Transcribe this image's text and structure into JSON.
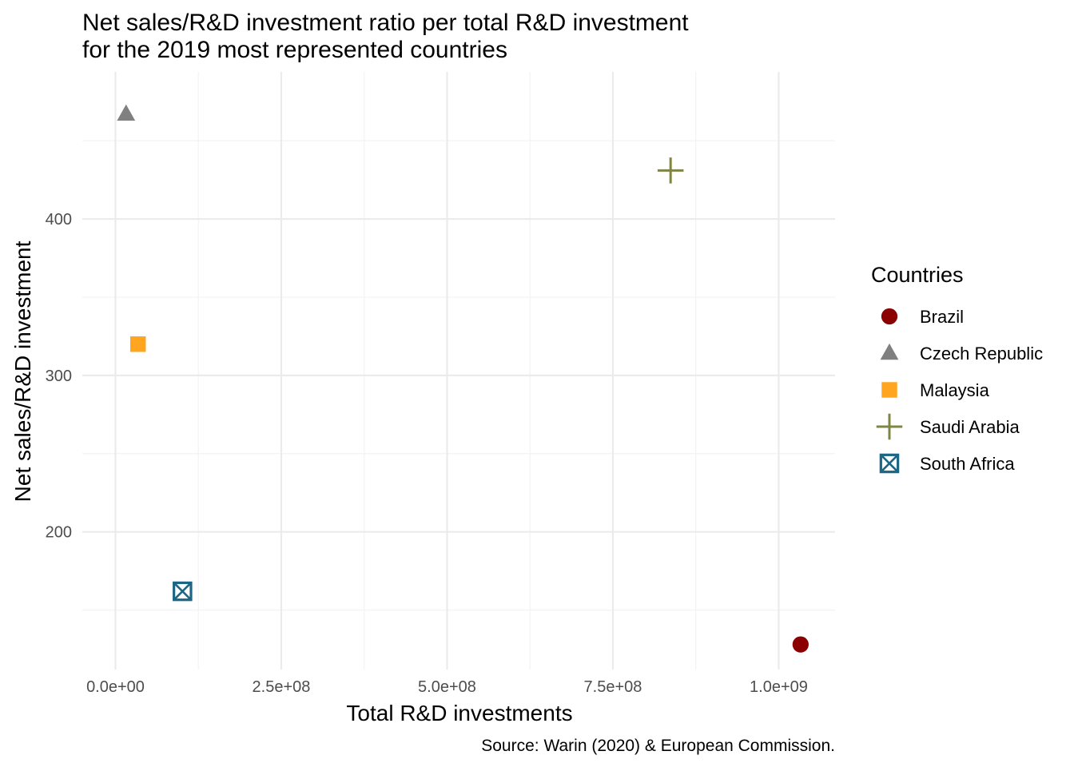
{
  "chart_data": {
    "type": "scatter",
    "title": "Net sales/R&D investment ratio per total R&D investment",
    "subtitle": "for the 2019 most represented countries",
    "xlabel": "Total R&D investments",
    "ylabel": "Net sales/R&D investment",
    "caption": "Source: Warin (2020) & European Commission.",
    "xlim": [
      -50000000,
      1085000000
    ],
    "ylim": [
      112,
      494
    ],
    "x_ticks": [
      0,
      250000000,
      500000000,
      750000000,
      1000000000
    ],
    "x_tick_labels": [
      "0.0e+00",
      "2.5e+08",
      "5.0e+08",
      "7.5e+08",
      "1.0e+09"
    ],
    "y_ticks": [
      200,
      300,
      400
    ],
    "y_tick_labels": [
      "200",
      "300",
      "400"
    ],
    "grid": true,
    "legend": {
      "title": "Countries",
      "placement": "right"
    },
    "series": [
      {
        "name": "Brazil",
        "shape": "circle",
        "color": "#8B0000",
        "x": 1033000000,
        "y": 128
      },
      {
        "name": "Czech Republic",
        "shape": "triangle",
        "color": "#808080",
        "x": 16000000,
        "y": 467
      },
      {
        "name": "Malaysia",
        "shape": "square",
        "color": "#FFA520",
        "x": 34000000,
        "y": 320
      },
      {
        "name": "Saudi Arabia",
        "shape": "plus",
        "color": "#808545",
        "x": 837000000,
        "y": 431
      },
      {
        "name": "South Africa",
        "shape": "square-cross",
        "color": "#1B6585",
        "x": 101000000,
        "y": 162
      }
    ]
  }
}
